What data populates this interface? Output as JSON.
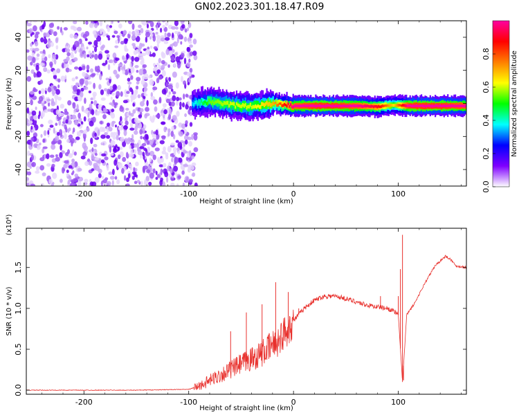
{
  "title": "GN02.2023.301.18.47.R09",
  "colors": {
    "trace": "#e8302c",
    "axis": "#000000"
  },
  "chart_data": [
    {
      "type": "heatmap",
      "title": "GN02.2023.301.18.47.R09",
      "xlabel": "Height of straight line (km)",
      "ylabel": "Frequency (Hz)",
      "xlim": [
        -255,
        165
      ],
      "ylim": [
        -50,
        50
      ],
      "xticks": [
        -200,
        -100,
        0,
        100
      ],
      "yticks": [
        -40,
        -20,
        0,
        20,
        40
      ],
      "noise_region": {
        "x": [
          -255,
          -97
        ],
        "y": [
          -50,
          50
        ],
        "level": "low (purple speckle)"
      },
      "signal_band": [
        {
          "x": -97,
          "freq": 0,
          "amp": 0.25
        },
        {
          "x": -80,
          "freq": 1,
          "amp": 0.45
        },
        {
          "x": -60,
          "freq": -1,
          "amp": 0.5
        },
        {
          "x": -40,
          "freq": -2,
          "amp": 0.5
        },
        {
          "x": -20,
          "freq": 0,
          "amp": 0.6
        },
        {
          "x": 0,
          "freq": -1.5,
          "amp": 0.9
        },
        {
          "x": 20,
          "freq": -1.5,
          "amp": 0.95
        },
        {
          "x": 40,
          "freq": -1.5,
          "amp": 0.95
        },
        {
          "x": 60,
          "freq": -1.5,
          "amp": 0.9
        },
        {
          "x": 80,
          "freq": -2,
          "amp": 0.8
        },
        {
          "x": 95,
          "freq": -1,
          "amp": 0.55
        },
        {
          "x": 110,
          "freq": -1.5,
          "amp": 0.95
        },
        {
          "x": 140,
          "freq": -1.5,
          "amp": 0.95
        },
        {
          "x": 165,
          "freq": -1.5,
          "amp": 0.9
        }
      ],
      "colorbar": {
        "label": "Normalized spectral amplitude",
        "range": [
          0,
          1
        ],
        "ticks": [
          0.0,
          0.2,
          0.4,
          0.6,
          0.8
        ],
        "colors": [
          "#ffffff",
          "#7f00ff",
          "#0000ff",
          "#00ffff",
          "#00ff00",
          "#ffff00",
          "#ff7f00",
          "#ff0000",
          "#ff00a0"
        ]
      }
    },
    {
      "type": "line",
      "xlabel": "Height of straight line (km)",
      "ylabel": "SNR (10 * v/v)",
      "multiplier": "(x10⁴)",
      "xlim": [
        -255,
        165
      ],
      "ylim": [
        -0.05,
        1.98
      ],
      "xticks": [
        -200,
        -100,
        0,
        100
      ],
      "yticks": [
        0.0,
        0.5,
        1.0,
        1.5
      ],
      "series": [
        {
          "x": [
            -255,
            -200,
            -150,
            -100,
            -90,
            -75,
            -60,
            -45,
            -30,
            -15,
            0,
            10,
            20,
            30,
            40,
            50,
            60,
            70,
            80,
            90,
            95,
            100,
            104,
            106,
            108,
            115,
            125,
            135,
            145,
            150,
            155,
            165
          ],
          "y": [
            0.0,
            0.0,
            0.0,
            0.01,
            0.05,
            0.15,
            0.25,
            0.35,
            0.45,
            0.6,
            0.85,
            1.0,
            1.1,
            1.15,
            1.15,
            1.12,
            1.08,
            1.04,
            1.02,
            1.0,
            0.97,
            0.92,
            0.1,
            0.5,
            0.92,
            1.05,
            1.3,
            1.52,
            1.64,
            1.6,
            1.52,
            1.5
          ]
        }
      ],
      "spikes": [
        {
          "x": -60,
          "y": 0.72
        },
        {
          "x": -45,
          "y": 0.95
        },
        {
          "x": -30,
          "y": 1.05
        },
        {
          "x": -17,
          "y": 1.32
        },
        {
          "x": -5,
          "y": 1.2
        },
        {
          "x": 5,
          "y": 1.0
        },
        {
          "x": 83,
          "y": 1.15
        },
        {
          "x": 100,
          "y": 1.15
        },
        {
          "x": 102,
          "y": 1.48
        },
        {
          "x": 104,
          "y": 1.9
        },
        {
          "x": 105,
          "y": 0.12
        }
      ]
    }
  ]
}
